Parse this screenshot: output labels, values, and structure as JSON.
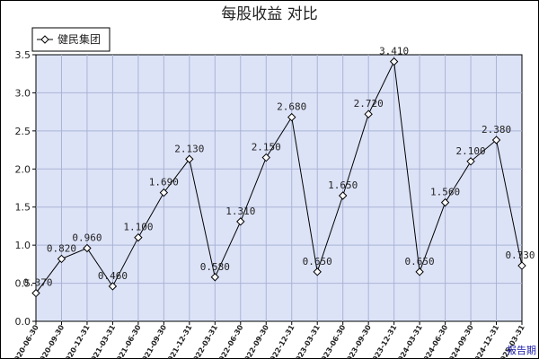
{
  "chart_data": {
    "type": "line",
    "title": "每股收益  对比",
    "x_corner_label": "报告期",
    "categories": [
      "2020-06-30",
      "2020-09-30",
      "2020-12-31",
      "2021-03-31",
      "2021-06-30",
      "2021-09-30",
      "2021-12-31",
      "2022-03-31",
      "2022-06-30",
      "2022-09-30",
      "2022-12-31",
      "2023-03-31",
      "2023-06-30",
      "2023-09-30",
      "2023-12-31",
      "2024-03-31",
      "2024-06-30",
      "2024-09-30",
      "2024-12-31",
      "2025-03-31"
    ],
    "series": [
      {
        "name": "健民集团",
        "color": "#000000",
        "values": [
          0.37,
          0.82,
          0.96,
          0.46,
          1.1,
          1.69,
          2.13,
          0.58,
          1.31,
          2.15,
          2.68,
          0.65,
          1.65,
          2.72,
          3.41,
          0.65,
          1.56,
          2.1,
          2.38,
          0.73
        ],
        "labels": [
          "0.370",
          "0.820",
          "0.960",
          "0.460",
          "1.100",
          "1.690",
          "2.130",
          "0.580",
          "1.310",
          "2.150",
          "2.680",
          "0.650",
          "1.650",
          "2.720",
          "3.410",
          "0.650",
          "1.560",
          "2.100",
          "2.380",
          "0.730"
        ]
      }
    ],
    "ylim": [
      0,
      3.5
    ],
    "yticks": [
      "0.0",
      "0.5",
      "1.0",
      "1.5",
      "2.0",
      "2.5",
      "3.0",
      "3.5"
    ],
    "grid": true,
    "legend_position": "top-left",
    "colors": {
      "plot_bg": "#dde3f7",
      "grid": "#a9b3d6",
      "line": "#000000"
    }
  }
}
